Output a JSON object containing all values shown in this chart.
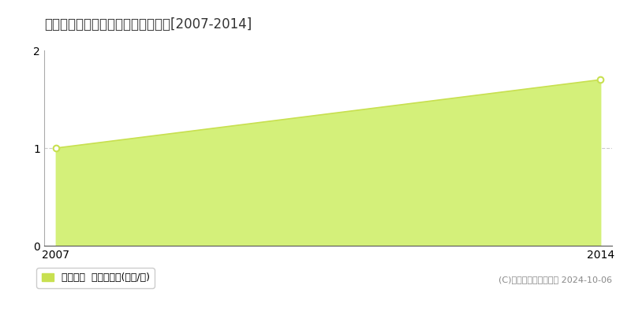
{
  "title": "那須郡那珂川町健武　土地価格推移[2007-2014]",
  "years": [
    2007,
    2014
  ],
  "values": [
    1.0,
    1.7
  ],
  "fill_color": "#d4f07a",
  "line_color": "#c8e050",
  "marker_color_open": "#ffffff",
  "marker_edge_color": "#c8e050",
  "ylim": [
    0,
    2
  ],
  "yticks": [
    0,
    1,
    2
  ],
  "xlim": [
    2007,
    2014
  ],
  "xticks": [
    2007,
    2014
  ],
  "grid_color": "#cccccc",
  "background_color": "#ffffff",
  "legend_label": "土地価格  平均坪単価(万円/坪)",
  "legend_color": "#c8e050",
  "copyright_text": "(C)土地価格ドットコム 2024-10-06",
  "title_fontsize": 12,
  "axis_fontsize": 10,
  "legend_fontsize": 9,
  "copyright_fontsize": 8
}
